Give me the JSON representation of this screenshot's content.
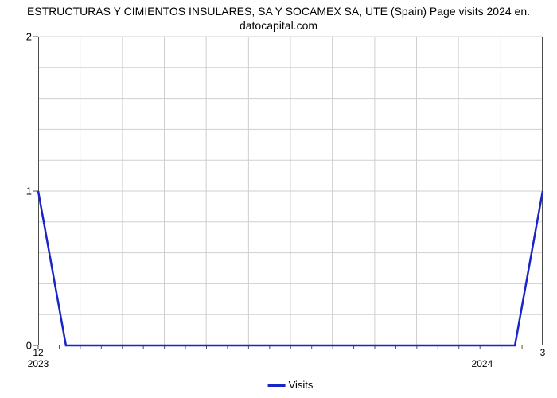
{
  "chart": {
    "type": "line",
    "title_line1": "ESTRUCTURAS Y CIMIENTOS INSULARES, SA Y SOCAMEX SA, UTE (Spain) Page visits 2024 en.",
    "title_line2": "datocapital.com",
    "title_fontsize": 14,
    "title_color": "#000000",
    "background_color": "#ffffff",
    "plot_border_color": "#4e4e4e",
    "grid_color": "#cfcfcf",
    "grid_width": 1,
    "tick_color": "#4e4e4e",
    "series": {
      "name": "Visits",
      "color": "#1924c9",
      "line_width": 2.5,
      "x": [
        0,
        0.055,
        0.945,
        1.0
      ],
      "y": [
        1.0,
        0.0,
        0.0,
        1.0
      ]
    },
    "y_axis": {
      "lim": [
        0,
        2
      ],
      "ticks": [
        0,
        1,
        2
      ],
      "minor_ticks": 4,
      "gridlines": [
        0.2,
        0.4,
        0.6,
        0.8,
        1.0,
        1.2,
        1.4,
        1.6,
        1.8,
        2.0
      ],
      "label_fontsize": 13
    },
    "x_axis": {
      "title": "Visits",
      "title_fontsize": 13,
      "sec_labels": [
        {
          "pos": 0.0,
          "text": "12"
        },
        {
          "pos": 1.0,
          "text": "3"
        }
      ],
      "year_labels": [
        {
          "pos": 0.0,
          "text": "2023"
        },
        {
          "pos": 0.88,
          "text": "2024"
        }
      ],
      "gridlines": [
        0.083,
        0.167,
        0.25,
        0.333,
        0.417,
        0.5,
        0.583,
        0.667,
        0.75,
        0.833,
        0.917
      ],
      "minor_tick_step": 0.0417
    },
    "legend": {
      "label": "Visits",
      "swatch_color": "#1924c9",
      "text_color": "#000000",
      "fontsize": 12
    }
  }
}
